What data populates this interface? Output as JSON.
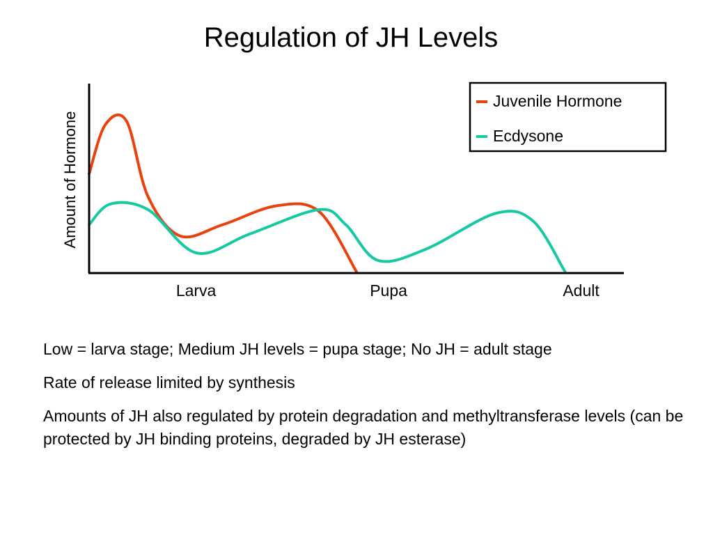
{
  "slide": {
    "title": "Regulation of JH Levels"
  },
  "chart_data": {
    "type": "line",
    "title": "",
    "ylabel": "Amount of Hormone",
    "xlabel": "",
    "xlim": [
      0,
      1
    ],
    "ylim": [
      0,
      1
    ],
    "x_ticks": [
      {
        "label": "Larva",
        "x": 0.2
      },
      {
        "label": "Pupa",
        "x": 0.56
      },
      {
        "label": "Adult",
        "x": 0.92
      }
    ],
    "series": [
      {
        "name": "Juvenile Hormone",
        "color": "#e8420f",
        "points": [
          [
            0.0,
            0.52
          ],
          [
            0.03,
            0.78
          ],
          [
            0.07,
            0.8
          ],
          [
            0.11,
            0.4
          ],
          [
            0.17,
            0.19
          ],
          [
            0.25,
            0.25
          ],
          [
            0.35,
            0.35
          ],
          [
            0.43,
            0.32
          ],
          [
            0.5,
            0.0
          ]
        ]
      },
      {
        "name": "Ecdysone",
        "color": "#17c9a3",
        "points": [
          [
            0.0,
            0.25
          ],
          [
            0.04,
            0.36
          ],
          [
            0.11,
            0.33
          ],
          [
            0.2,
            0.1
          ],
          [
            0.3,
            0.2
          ],
          [
            0.43,
            0.33
          ],
          [
            0.48,
            0.25
          ],
          [
            0.54,
            0.06
          ],
          [
            0.63,
            0.12
          ],
          [
            0.76,
            0.31
          ],
          [
            0.83,
            0.27
          ],
          [
            0.89,
            0.0
          ]
        ]
      }
    ],
    "grid": false,
    "legend_position": "top-right"
  },
  "notes": [
    "Low = larva stage; Medium JH levels = pupa stage; No JH = adult stage",
    "Rate of release limited by synthesis",
    "Amounts of JH also regulated by protein degradation and methyltransferase levels (can be protected by JH binding proteins, degraded by JH esterase)"
  ]
}
